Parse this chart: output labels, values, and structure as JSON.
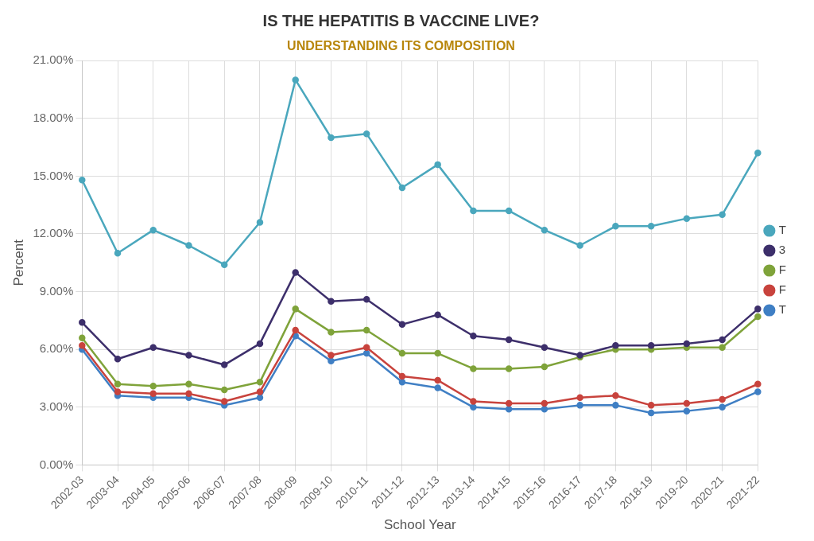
{
  "chart_data": {
    "type": "line",
    "title": "IS THE HEPATITIS B VACCINE LIVE?",
    "subtitle": "UNDERSTANDING ITS COMPOSITION",
    "xlabel": "School Year",
    "ylabel": "Percent",
    "categories": [
      "2002-03",
      "2003-04",
      "2004-05",
      "2005-06",
      "2006-07",
      "2007-08",
      "2008-09",
      "2009-10",
      "2010-11",
      "2011-12",
      "2012-13",
      "2013-14",
      "2014-15",
      "2015-16",
      "2016-17",
      "2017-18",
      "2018-19",
      "2019-20",
      "2020-21",
      "2021-22"
    ],
    "series": [
      {
        "name": "T",
        "color": "#4aa7bd",
        "values": [
          14.8,
          11.0,
          12.2,
          11.4,
          10.4,
          12.6,
          20.0,
          17.0,
          17.2,
          14.4,
          15.6,
          13.2,
          13.2,
          12.2,
          11.4,
          12.4,
          12.4,
          12.8,
          13.0,
          16.2
        ]
      },
      {
        "name": "3",
        "color": "#3d2f6b",
        "values": [
          7.4,
          5.5,
          6.1,
          5.7,
          5.2,
          6.3,
          10.0,
          8.5,
          8.6,
          7.3,
          7.8,
          6.7,
          6.5,
          6.1,
          5.7,
          6.2,
          6.2,
          6.3,
          6.5,
          8.1
        ]
      },
      {
        "name": "F",
        "color": "#7fa33a",
        "values": [
          6.6,
          4.2,
          4.1,
          4.2,
          3.9,
          4.3,
          8.1,
          6.9,
          7.0,
          5.8,
          5.8,
          5.0,
          5.0,
          5.1,
          5.6,
          6.0,
          6.0,
          6.1,
          6.1,
          7.7
        ]
      },
      {
        "name": "F",
        "color": "#c8433d",
        "values": [
          6.2,
          3.8,
          3.7,
          3.7,
          3.3,
          3.8,
          7.0,
          5.7,
          6.1,
          4.6,
          4.4,
          3.3,
          3.2,
          3.2,
          3.5,
          3.6,
          3.1,
          3.2,
          3.4,
          4.2
        ]
      },
      {
        "name": "T",
        "color": "#3f7fc4",
        "values": [
          6.0,
          3.6,
          3.5,
          3.5,
          3.1,
          3.5,
          6.7,
          5.4,
          5.8,
          4.3,
          4.0,
          3.0,
          2.9,
          2.9,
          3.1,
          3.1,
          2.7,
          2.8,
          3.0,
          3.8
        ]
      }
    ],
    "ylim": [
      0,
      21
    ],
    "yticks": [
      {
        "value": 0,
        "label": "0.00%"
      },
      {
        "value": 3,
        "label": "3.00%"
      },
      {
        "value": 6,
        "label": "6.00%"
      },
      {
        "value": 9,
        "label": "9.00%"
      },
      {
        "value": 12,
        "label": "12.00%"
      },
      {
        "value": 15,
        "label": "15.00%"
      },
      {
        "value": 18,
        "label": "18.00%"
      },
      {
        "value": 21,
        "label": "21.00%"
      }
    ],
    "grid": true,
    "legend": "right",
    "marker": "circle",
    "line_style": "solid"
  }
}
